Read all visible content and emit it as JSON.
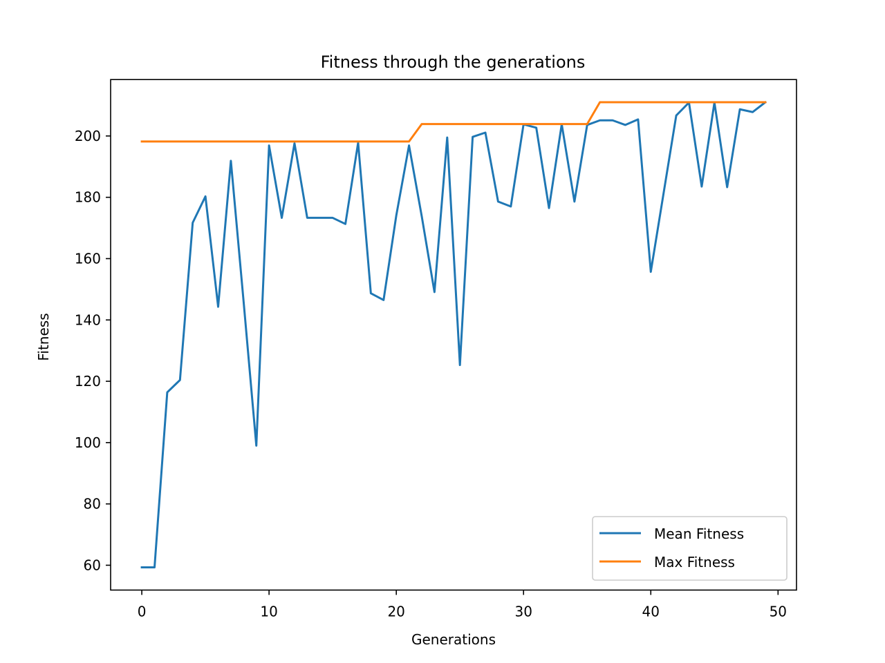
{
  "chart_data": {
    "type": "line",
    "title": "Fitness through the generations",
    "xlabel": "Generations",
    "ylabel": "Fitness",
    "xlim": [
      -2.45,
      51.45
    ],
    "ylim": [
      51.9,
      218.4
    ],
    "xticks": [
      0,
      10,
      20,
      30,
      40,
      50
    ],
    "yticks": [
      60,
      80,
      100,
      120,
      140,
      160,
      180,
      200
    ],
    "grid": false,
    "legend_position": "lower right",
    "x": [
      0,
      1,
      2,
      3,
      4,
      5,
      6,
      7,
      8,
      9,
      10,
      11,
      12,
      13,
      14,
      15,
      16,
      17,
      18,
      19,
      20,
      21,
      22,
      23,
      24,
      25,
      26,
      27,
      28,
      29,
      30,
      31,
      32,
      33,
      34,
      35,
      36,
      37,
      38,
      39,
      40,
      41,
      42,
      43,
      44,
      45,
      46,
      47,
      48,
      49
    ],
    "series": [
      {
        "name": "Mean Fitness",
        "color": "#1f77b4",
        "values": [
          59.3,
          59.3,
          116.4,
          120.4,
          171.7,
          180.3,
          144.3,
          191.9,
          146.0,
          99.0,
          196.9,
          173.3,
          197.6,
          173.3,
          173.3,
          173.3,
          171.3,
          197.8,
          148.7,
          146.5,
          174.1,
          196.9,
          173.8,
          149.1,
          199.5,
          125.3,
          199.7,
          201.1,
          178.6,
          177.0,
          203.8,
          202.7,
          176.5,
          203.8,
          178.6,
          203.6,
          205.1,
          205.1,
          203.6,
          205.4,
          155.7,
          181.2,
          206.7,
          210.9,
          183.5,
          210.9,
          183.3,
          208.7,
          207.8,
          211.0
        ]
      },
      {
        "name": "Max Fitness",
        "color": "#ff7f0e",
        "values": [
          198.2,
          198.2,
          198.2,
          198.2,
          198.2,
          198.2,
          198.2,
          198.2,
          198.2,
          198.2,
          198.2,
          198.2,
          198.2,
          198.2,
          198.2,
          198.2,
          198.2,
          198.2,
          198.2,
          198.2,
          198.2,
          198.2,
          203.9,
          203.9,
          203.9,
          203.9,
          203.9,
          203.9,
          203.9,
          203.9,
          203.9,
          203.9,
          203.9,
          203.9,
          203.9,
          203.9,
          211.0,
          211.0,
          211.0,
          211.0,
          211.0,
          211.0,
          211.0,
          211.0,
          211.0,
          211.0,
          211.0,
          211.0,
          211.0,
          211.0
        ]
      }
    ]
  }
}
